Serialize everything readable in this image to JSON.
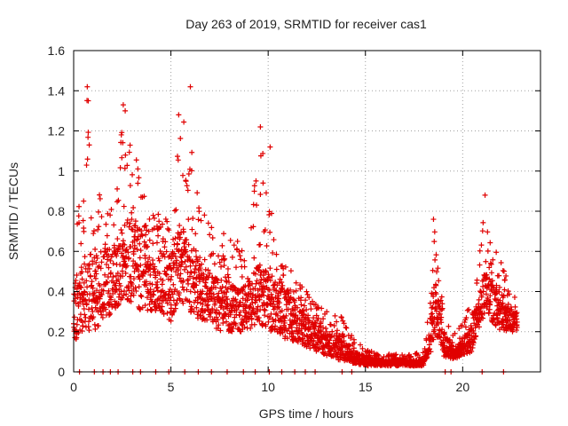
{
  "chart_data": {
    "type": "scatter",
    "title": "Day 263 of 2019, SRMTID for receiver cas1",
    "xlabel": "GPS time / hours",
    "ylabel": "SRMTID / TECUs",
    "xlim": [
      0,
      24
    ],
    "ylim": [
      0,
      1.6
    ],
    "xticks": [
      0,
      5,
      10,
      15,
      20
    ],
    "xtick_labels": [
      "0",
      "5",
      "10",
      "15",
      "20"
    ],
    "yticks": [
      0,
      0.2,
      0.4,
      0.6,
      0.8,
      1,
      1.2,
      1.4,
      1.6
    ],
    "ytick_labels": [
      "0",
      "0.2",
      "0.4",
      "0.6",
      "0.8",
      "1",
      "1.2",
      "1.4",
      "1.6"
    ],
    "grid": true,
    "marker": "+",
    "color": "#e00000",
    "series": [
      {
        "name": "cas1",
        "note": "dense scatter approximated by hourly envelope (hour, typical low, typical high, peak) plus notable outliers",
        "envelope": [
          [
            0,
            0.15,
            0.45,
            0.72
          ],
          [
            0.5,
            0.2,
            0.55,
            0.95
          ],
          [
            0.7,
            0.2,
            0.6,
            1.42
          ],
          [
            1,
            0.2,
            0.6,
            0.88
          ],
          [
            1.5,
            0.25,
            0.6,
            0.9
          ],
          [
            2,
            0.3,
            0.65,
            0.8
          ],
          [
            2.5,
            0.35,
            0.75,
            1.32
          ],
          [
            3,
            0.35,
            0.8,
            1.2
          ],
          [
            3.5,
            0.3,
            0.7,
            0.95
          ],
          [
            4,
            0.3,
            0.65,
            0.8
          ],
          [
            4.5,
            0.3,
            0.6,
            0.83
          ],
          [
            5,
            0.25,
            0.6,
            0.75
          ],
          [
            5.5,
            0.35,
            0.75,
            1.28
          ],
          [
            6,
            0.3,
            0.7,
            1.42
          ],
          [
            6.5,
            0.25,
            0.55,
            0.85
          ],
          [
            7,
            0.25,
            0.5,
            0.75
          ],
          [
            7.5,
            0.2,
            0.45,
            0.7
          ],
          [
            8,
            0.2,
            0.45,
            0.7
          ],
          [
            8.5,
            0.2,
            0.4,
            0.65
          ],
          [
            9,
            0.2,
            0.45,
            0.7
          ],
          [
            9.5,
            0.25,
            0.55,
            1.22
          ],
          [
            10,
            0.2,
            0.5,
            1.12
          ],
          [
            10.5,
            0.2,
            0.45,
            0.55
          ],
          [
            11,
            0.15,
            0.4,
            0.55
          ],
          [
            11.5,
            0.15,
            0.35,
            0.45
          ],
          [
            12,
            0.12,
            0.3,
            0.4
          ],
          [
            12.5,
            0.1,
            0.25,
            0.35
          ],
          [
            13,
            0.08,
            0.2,
            0.3
          ],
          [
            13.5,
            0.06,
            0.18,
            0.3
          ],
          [
            14,
            0.05,
            0.15,
            0.25
          ],
          [
            14.5,
            0.04,
            0.1,
            0.15
          ],
          [
            15,
            0.03,
            0.08,
            0.12
          ],
          [
            15.5,
            0.03,
            0.07,
            0.1
          ],
          [
            16,
            0.03,
            0.06,
            0.09
          ],
          [
            16.5,
            0.03,
            0.06,
            0.09
          ],
          [
            17,
            0.03,
            0.06,
            0.09
          ],
          [
            17.5,
            0.03,
            0.06,
            0.09
          ],
          [
            18,
            0.03,
            0.06,
            0.1
          ],
          [
            18.4,
            0.1,
            0.3,
            0.45
          ],
          [
            18.6,
            0.2,
            0.5,
            0.76
          ],
          [
            19,
            0.08,
            0.2,
            0.3
          ],
          [
            19.5,
            0.06,
            0.12,
            0.2
          ],
          [
            20,
            0.08,
            0.15,
            0.25
          ],
          [
            20.5,
            0.1,
            0.25,
            0.4
          ],
          [
            21,
            0.25,
            0.45,
            0.72
          ],
          [
            21.2,
            0.3,
            0.5,
            0.88
          ],
          [
            21.5,
            0.25,
            0.45,
            0.65
          ],
          [
            22,
            0.2,
            0.35,
            0.55
          ],
          [
            22.5,
            0.2,
            0.3,
            0.45
          ],
          [
            22.8,
            0.2,
            0.3,
            0.35
          ]
        ],
        "outliers": [
          [
            0.7,
            1.42
          ],
          [
            0.75,
            1.35
          ],
          [
            0.8,
            1.13
          ],
          [
            2.55,
            1.33
          ],
          [
            2.65,
            1.3
          ],
          [
            5.4,
            1.28
          ],
          [
            6.0,
            1.42
          ],
          [
            9.6,
            1.22
          ],
          [
            10.1,
            1.12
          ],
          [
            21.15,
            0.88
          ],
          [
            18.5,
            0.76
          ]
        ]
      }
    ]
  }
}
